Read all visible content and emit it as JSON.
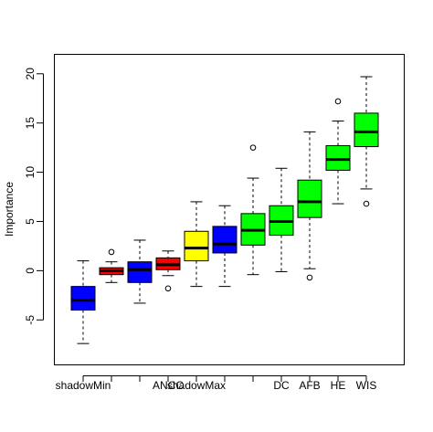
{
  "chart_data": {
    "type": "box",
    "title": "",
    "xlabel": "",
    "ylabel": "Importance",
    "ylim": [
      -8.5,
      21
    ],
    "yticks": [
      -5,
      0,
      5,
      10,
      15,
      20
    ],
    "ytick_labels": [
      "-5",
      "0",
      "5",
      "10",
      "15",
      "20"
    ],
    "grid": false,
    "legend": "none",
    "categories": [
      "shadowMin",
      "",
      "",
      "ANCC",
      "shadowMax",
      "",
      "",
      "DC",
      "AFB",
      "HE",
      "WIS"
    ],
    "boxes": [
      {
        "label": "shadowMin",
        "color": "#0000FF",
        "whisker_low": -7.4,
        "q1": -4.0,
        "median": -3.0,
        "q3": -1.6,
        "whisker_high": 1.0,
        "outliers": []
      },
      {
        "label": "",
        "color": "#FF0000",
        "whisker_low": -1.2,
        "q1": -0.4,
        "median": 0.0,
        "q3": 0.3,
        "whisker_high": 0.9,
        "outliers": [
          1.9
        ]
      },
      {
        "label": "",
        "color": "#0000FF",
        "whisker_low": -3.3,
        "q1": -1.2,
        "median": 0.1,
        "q3": 0.9,
        "whisker_high": 3.1,
        "outliers": []
      },
      {
        "label": "ANCC",
        "color": "#FF0000",
        "whisker_low": -0.5,
        "q1": 0.1,
        "median": 0.6,
        "q3": 1.3,
        "whisker_high": 2.0,
        "outliers": [
          -1.8
        ]
      },
      {
        "label": "shadowMax",
        "color": "#FFFF00",
        "whisker_low": -1.6,
        "q1": 1.0,
        "median": 2.3,
        "q3": 4.0,
        "whisker_high": 7.0,
        "outliers": []
      },
      {
        "label": "",
        "color": "#0000FF",
        "whisker_low": -1.6,
        "q1": 1.8,
        "median": 2.7,
        "q3": 4.5,
        "whisker_high": 6.6,
        "outliers": []
      },
      {
        "label": "",
        "color": "#00FF00",
        "whisker_low": -0.4,
        "q1": 2.6,
        "median": 4.1,
        "q3": 5.8,
        "whisker_high": 9.4,
        "outliers": [
          12.5
        ]
      },
      {
        "label": "DC",
        "color": "#00FF00",
        "whisker_low": -0.1,
        "q1": 3.6,
        "median": 5.0,
        "q3": 6.6,
        "whisker_high": 10.4,
        "outliers": []
      },
      {
        "label": "AFB",
        "color": "#00FF00",
        "whisker_low": 0.2,
        "q1": 5.4,
        "median": 7.0,
        "q3": 9.2,
        "whisker_high": 14.1,
        "outliers": [
          -0.7
        ]
      },
      {
        "label": "HE",
        "color": "#00FF00",
        "whisker_low": 6.8,
        "q1": 10.2,
        "median": 11.3,
        "q3": 12.7,
        "whisker_high": 15.2,
        "outliers": [
          17.2
        ]
      },
      {
        "label": "WIS",
        "color": "#00FF00",
        "whisker_low": 8.3,
        "q1": 12.6,
        "median": 14.1,
        "q3": 16.0,
        "whisker_high": 19.7,
        "outliers": [
          6.8
        ]
      }
    ]
  }
}
